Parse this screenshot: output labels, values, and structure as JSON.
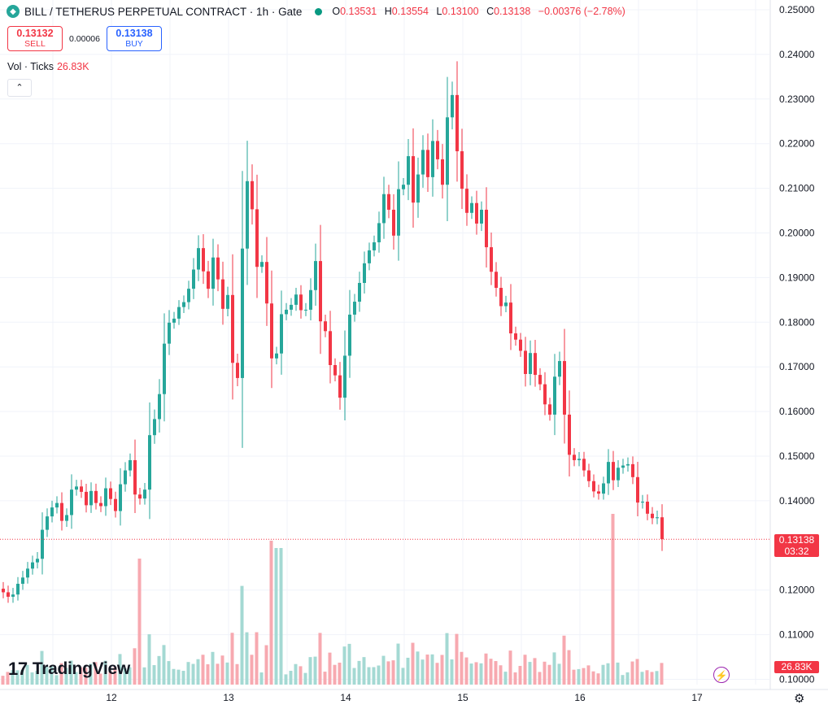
{
  "header": {
    "title": "BILL / TETHERUS PERPETUAL CONTRACT · 1h · Gate",
    "ohlc": [
      {
        "k": "O",
        "v": "0.13531"
      },
      {
        "k": "H",
        "v": "0.13554"
      },
      {
        "k": "L",
        "v": "0.13100"
      },
      {
        "k": "C",
        "v": "0.13138"
      }
    ],
    "change": "−0.00376 (−2.78%)"
  },
  "trade": {
    "sell_price": "0.13132",
    "sell_label": "SELL",
    "spread": "0.00006",
    "buy_price": "0.13138",
    "buy_label": "BUY"
  },
  "volume_legend": {
    "label": "Vol · Ticks",
    "value": "26.83K"
  },
  "collapse_icon": "chevron-up-icon",
  "branding": "TradingView",
  "price_tag": {
    "price": "0.13138",
    "countdown": "03:32"
  },
  "volume_tag": "26.83K",
  "colors": {
    "up": "#26a69a",
    "down": "#f23645",
    "up_vol": "#a4d9d3",
    "down_vol": "#f7a9b0"
  },
  "chart_data": {
    "type": "candlestick",
    "x_tick_labels": [
      "12",
      "13",
      "14",
      "15",
      "16",
      "17"
    ],
    "y_tick_labels": [
      "0.25000",
      "0.24000",
      "0.23000",
      "0.22000",
      "0.21000",
      "0.20000",
      "0.19000",
      "0.18000",
      "0.17000",
      "0.16000",
      "0.15000",
      "0.14000",
      "0.12000",
      "0.11000",
      "0.10000"
    ],
    "ylim": [
      0.1,
      0.25
    ],
    "last_price": 0.13138,
    "close": [
      0.1195,
      0.1185,
      0.119,
      0.1214,
      0.1228,
      0.1248,
      0.1262,
      0.127,
      0.1335,
      0.1365,
      0.1385,
      0.1395,
      0.1355,
      0.1368,
      0.1425,
      0.1432,
      0.142,
      0.139,
      0.1422,
      0.1395,
      0.1388,
      0.1428,
      0.1404,
      0.1377,
      0.1437,
      0.1468,
      0.1491,
      0.1414,
      0.1405,
      0.1425,
      0.1547,
      0.1583,
      0.1639,
      0.1752,
      0.1799,
      0.1808,
      0.1834,
      0.1845,
      0.1875,
      0.1918,
      0.1966,
      0.1914,
      0.1875,
      0.1945,
      0.1896,
      0.183,
      0.1861,
      0.1709,
      0.1675,
      0.1965,
      0.2116,
      0.2053,
      0.1924,
      0.1935,
      0.1842,
      0.1719,
      0.173,
      0.1818,
      0.1828,
      0.1839,
      0.1862,
      0.1827,
      0.1828,
      0.1872,
      0.1937,
      0.1802,
      0.178,
      0.1704,
      0.1681,
      0.1631,
      0.1725,
      0.1817,
      0.1846,
      0.1888,
      0.1932,
      0.1961,
      0.1979,
      0.2022,
      0.2087,
      0.2052,
      0.1994,
      0.2098,
      0.2108,
      0.2172,
      0.2068,
      0.2131,
      0.2186,
      0.2125,
      0.2206,
      0.2165,
      0.2108,
      0.2259,
      0.2309,
      0.2183,
      0.2099,
      0.2045,
      0.2067,
      0.2021,
      0.2052,
      0.1968,
      0.1913,
      0.1877,
      0.1836,
      0.1844,
      0.1775,
      0.1761,
      0.1736,
      0.1684,
      0.1731,
      0.1682,
      0.1661,
      0.1616,
      0.1593,
      0.1678,
      0.1713,
      0.1593,
      0.1503,
      0.1491,
      0.1494,
      0.1468,
      0.1444,
      0.1421,
      0.1416,
      0.1439,
      0.1487,
      0.1446,
      0.1474,
      0.1479,
      0.1482,
      0.1453,
      0.1396,
      0.1398,
      0.1371,
      0.1361,
      0.1363,
      0.1314
    ]
  }
}
